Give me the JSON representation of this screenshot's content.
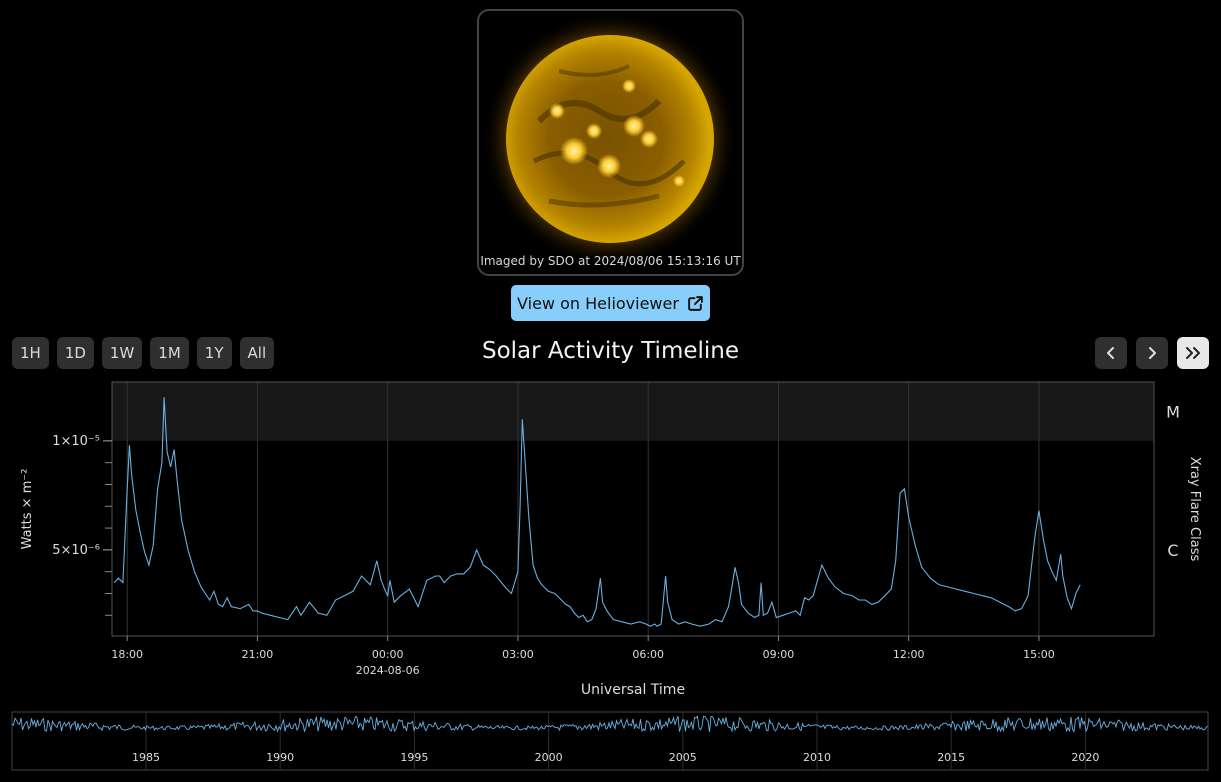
{
  "sun_image": {
    "caption": "Imaged by SDO at 2024/08/06 15:13:16 UT"
  },
  "helioviewer_button": {
    "label": "View on Helioviewer",
    "icon": "external-link-icon"
  },
  "range_buttons": [
    {
      "label": "1H"
    },
    {
      "label": "1D"
    },
    {
      "label": "1W"
    },
    {
      "label": "1M"
    },
    {
      "label": "1Y"
    },
    {
      "label": "All"
    }
  ],
  "title": "Solar Activity Timeline",
  "nav_buttons": [
    {
      "icon": "chevron-left-icon"
    },
    {
      "icon": "chevron-right-icon"
    },
    {
      "icon": "double-chevron-right-icon"
    }
  ],
  "colors": {
    "background": "#000000",
    "line": "#6aafe0",
    "button": "#2f2f2f",
    "accent_button": "#87cefa",
    "m_band": "#181818"
  },
  "chart_data": {
    "type": "line",
    "title": "Solar Activity Timeline",
    "xlabel": "Universal Time",
    "ylabel": "Watts × m⁻²",
    "y2label": "Xray Flare Class",
    "x_ticks": [
      {
        "label": "18:00",
        "hour": 0
      },
      {
        "label": "21:00",
        "hour": 3
      },
      {
        "label": "00:00",
        "hour": 6,
        "sublabel": "2024-08-06"
      },
      {
        "label": "03:00",
        "hour": 9
      },
      {
        "label": "06:00",
        "hour": 12
      },
      {
        "label": "09:00",
        "hour": 15
      },
      {
        "label": "12:00",
        "hour": 18
      },
      {
        "label": "15:00",
        "hour": 21
      }
    ],
    "y_tick_labels": [
      {
        "label": "1×10⁻⁵",
        "value": 10
      },
      {
        "label": "5×10⁻⁶",
        "value": 5
      }
    ],
    "y_unlabeled_ticks": [
      9,
      8,
      7,
      6,
      4,
      3,
      2
    ],
    "flare_classes": [
      {
        "label": "M",
        "value": 12.5
      },
      {
        "label": "C",
        "value": 5
      }
    ],
    "m_band_range": [
      10,
      12.5
    ],
    "x_range_hours": [
      -0.35,
      23.65
    ],
    "y_range": [
      1.05,
      12.7
    ],
    "grid": true,
    "series": [
      {
        "points": [
          [
            -0.3,
            3.5
          ],
          [
            -0.2,
            3.7
          ],
          [
            -0.1,
            3.5
          ],
          [
            0.0,
            7.8
          ],
          [
            0.05,
            9.8
          ],
          [
            0.1,
            8.5
          ],
          [
            0.2,
            6.8
          ],
          [
            0.3,
            5.8
          ],
          [
            0.4,
            4.9
          ],
          [
            0.5,
            4.3
          ],
          [
            0.6,
            5.2
          ],
          [
            0.7,
            7.8
          ],
          [
            0.8,
            9.0
          ],
          [
            0.85,
            12.0
          ],
          [
            0.92,
            9.5
          ],
          [
            1.0,
            8.8
          ],
          [
            1.08,
            9.6
          ],
          [
            1.15,
            8.2
          ],
          [
            1.25,
            6.4
          ],
          [
            1.4,
            5.0
          ],
          [
            1.55,
            4.0
          ],
          [
            1.7,
            3.3
          ],
          [
            1.8,
            3.0
          ],
          [
            1.9,
            2.7
          ],
          [
            2.0,
            3.1
          ],
          [
            2.1,
            2.5
          ],
          [
            2.2,
            2.4
          ],
          [
            2.3,
            2.8
          ],
          [
            2.4,
            2.4
          ],
          [
            2.6,
            2.3
          ],
          [
            2.8,
            2.5
          ],
          [
            2.9,
            2.2
          ],
          [
            3.0,
            2.2
          ],
          [
            3.1,
            2.1
          ],
          [
            3.3,
            2.0
          ],
          [
            3.5,
            1.9
          ],
          [
            3.7,
            1.8
          ],
          [
            3.9,
            2.4
          ],
          [
            4.0,
            2.0
          ],
          [
            4.2,
            2.6
          ],
          [
            4.4,
            2.1
          ],
          [
            4.6,
            2.0
          ],
          [
            4.8,
            2.7
          ],
          [
            5.0,
            2.9
          ],
          [
            5.2,
            3.1
          ],
          [
            5.4,
            3.8
          ],
          [
            5.6,
            3.4
          ],
          [
            5.75,
            4.5
          ],
          [
            5.85,
            3.6
          ],
          [
            5.95,
            3.1
          ],
          [
            6.0,
            2.9
          ],
          [
            6.05,
            3.6
          ],
          [
            6.15,
            2.6
          ],
          [
            6.3,
            2.9
          ],
          [
            6.5,
            3.2
          ],
          [
            6.7,
            2.4
          ],
          [
            6.9,
            3.6
          ],
          [
            7.1,
            3.8
          ],
          [
            7.2,
            3.8
          ],
          [
            7.3,
            3.5
          ],
          [
            7.45,
            3.8
          ],
          [
            7.6,
            3.9
          ],
          [
            7.75,
            3.9
          ],
          [
            7.9,
            4.2
          ],
          [
            8.05,
            5.0
          ],
          [
            8.2,
            4.3
          ],
          [
            8.35,
            4.1
          ],
          [
            8.5,
            3.8
          ],
          [
            8.7,
            3.3
          ],
          [
            8.85,
            3.0
          ],
          [
            9.0,
            4.0
          ],
          [
            9.05,
            7.0
          ],
          [
            9.1,
            11.0
          ],
          [
            9.15,
            9.5
          ],
          [
            9.25,
            6.5
          ],
          [
            9.35,
            4.3
          ],
          [
            9.45,
            3.7
          ],
          [
            9.55,
            3.4
          ],
          [
            9.7,
            3.1
          ],
          [
            9.85,
            3.0
          ],
          [
            10.0,
            2.7
          ],
          [
            10.1,
            2.5
          ],
          [
            10.2,
            2.4
          ],
          [
            10.3,
            2.1
          ],
          [
            10.4,
            1.9
          ],
          [
            10.5,
            2.0
          ],
          [
            10.6,
            1.7
          ],
          [
            10.7,
            1.8
          ],
          [
            10.8,
            2.3
          ],
          [
            10.9,
            3.7
          ],
          [
            10.95,
            2.6
          ],
          [
            11.05,
            2.2
          ],
          [
            11.2,
            1.8
          ],
          [
            11.4,
            1.7
          ],
          [
            11.6,
            1.6
          ],
          [
            11.8,
            1.7
          ],
          [
            11.95,
            1.6
          ],
          [
            12.05,
            1.5
          ],
          [
            12.15,
            1.6
          ],
          [
            12.2,
            1.5
          ],
          [
            12.3,
            1.6
          ],
          [
            12.4,
            3.8
          ],
          [
            12.45,
            2.6
          ],
          [
            12.55,
            1.8
          ],
          [
            12.7,
            1.6
          ],
          [
            12.85,
            1.7
          ],
          [
            13.0,
            1.6
          ],
          [
            13.2,
            1.5
          ],
          [
            13.4,
            1.6
          ],
          [
            13.55,
            1.8
          ],
          [
            13.7,
            1.7
          ],
          [
            13.85,
            2.4
          ],
          [
            13.92,
            3.2
          ],
          [
            14.0,
            4.2
          ],
          [
            14.08,
            3.5
          ],
          [
            14.15,
            2.5
          ],
          [
            14.3,
            2.1
          ],
          [
            14.45,
            1.9
          ],
          [
            14.55,
            2.0
          ],
          [
            14.6,
            3.5
          ],
          [
            14.65,
            2.0
          ],
          [
            14.75,
            2.1
          ],
          [
            14.85,
            2.6
          ],
          [
            14.95,
            1.9
          ],
          [
            15.1,
            2.0
          ],
          [
            15.25,
            2.1
          ],
          [
            15.4,
            2.2
          ],
          [
            15.5,
            2.0
          ],
          [
            15.6,
            2.8
          ],
          [
            15.7,
            2.7
          ],
          [
            15.8,
            2.9
          ],
          [
            15.9,
            3.6
          ],
          [
            16.0,
            4.3
          ],
          [
            16.15,
            3.7
          ],
          [
            16.3,
            3.3
          ],
          [
            16.5,
            3.0
          ],
          [
            16.7,
            2.9
          ],
          [
            16.85,
            2.7
          ],
          [
            17.0,
            2.7
          ],
          [
            17.15,
            2.5
          ],
          [
            17.3,
            2.6
          ],
          [
            17.45,
            2.9
          ],
          [
            17.6,
            3.2
          ],
          [
            17.7,
            4.5
          ],
          [
            17.8,
            7.6
          ],
          [
            17.9,
            7.8
          ],
          [
            18.0,
            6.5
          ],
          [
            18.15,
            5.2
          ],
          [
            18.3,
            4.2
          ],
          [
            18.5,
            3.7
          ],
          [
            18.7,
            3.4
          ],
          [
            18.9,
            3.3
          ],
          [
            19.1,
            3.2
          ],
          [
            19.3,
            3.1
          ],
          [
            19.5,
            3.0
          ],
          [
            19.7,
            2.9
          ],
          [
            19.9,
            2.8
          ],
          [
            20.1,
            2.6
          ],
          [
            20.3,
            2.4
          ],
          [
            20.45,
            2.2
          ],
          [
            20.6,
            2.3
          ],
          [
            20.75,
            2.9
          ],
          [
            20.9,
            5.5
          ],
          [
            21.0,
            6.8
          ],
          [
            21.1,
            5.5
          ],
          [
            21.2,
            4.5
          ],
          [
            21.3,
            4.0
          ],
          [
            21.4,
            3.6
          ],
          [
            21.5,
            4.8
          ],
          [
            21.55,
            3.8
          ],
          [
            21.65,
            2.8
          ],
          [
            21.75,
            2.3
          ],
          [
            21.85,
            3.0
          ],
          [
            21.95,
            3.4
          ]
        ]
      }
    ]
  },
  "overview": {
    "x_ticks": [
      "1985",
      "1990",
      "1995",
      "2000",
      "2005",
      "2010",
      "2015",
      "2020"
    ]
  }
}
